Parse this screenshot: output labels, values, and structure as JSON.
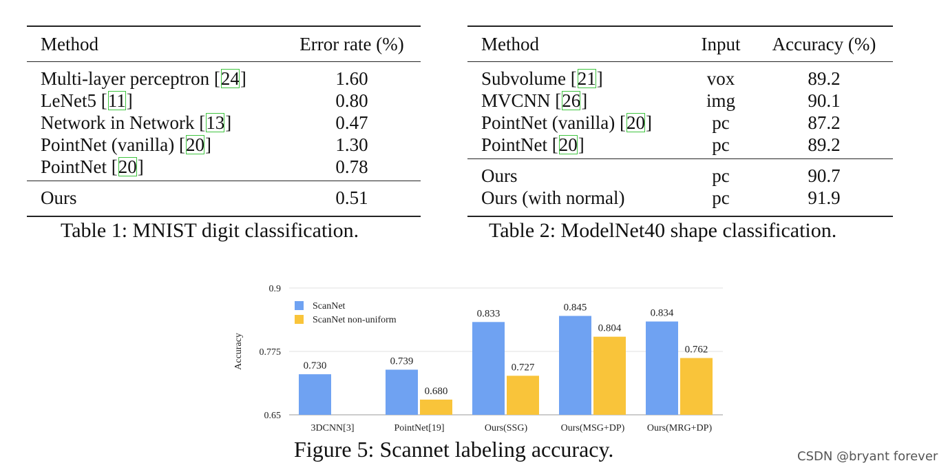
{
  "table1": {
    "headers": [
      "Method",
      "Error rate (%)"
    ],
    "rows": [
      {
        "method": "Multi-layer perceptron [",
        "cite": "24",
        "tail": "]",
        "value": "1.60"
      },
      {
        "method": "LeNet5 [",
        "cite": "11",
        "tail": "]",
        "value": "0.80"
      },
      {
        "method": "Network in Network [",
        "cite": "13",
        "tail": "]",
        "value": "0.47"
      },
      {
        "method": "PointNet (vanilla) [",
        "cite": "20",
        "tail": "]",
        "value": "1.30"
      },
      {
        "method": "PointNet [",
        "cite": "20",
        "tail": "]",
        "value": "0.78"
      }
    ],
    "ours": {
      "method": "Ours",
      "value": "0.51"
    },
    "caption": "Table 1: MNIST digit classification."
  },
  "table2": {
    "headers": [
      "Method",
      "Input",
      "Accuracy (%)"
    ],
    "rows": [
      {
        "method": "Subvolume [",
        "cite": "21",
        "tail": "]",
        "input": "vox",
        "value": "89.2"
      },
      {
        "method": "MVCNN [",
        "cite": "26",
        "tail": "]",
        "input": "img",
        "value": "90.1"
      },
      {
        "method": "PointNet (vanilla) [",
        "cite": "20",
        "tail": "]",
        "input": "pc",
        "value": "87.2"
      },
      {
        "method": "PointNet [",
        "cite": "20",
        "tail": "]",
        "input": "pc",
        "value": "89.2"
      }
    ],
    "ours": [
      {
        "method": "Ours",
        "input": "pc",
        "value": "90.7"
      },
      {
        "method": "Ours (with normal)",
        "input": "pc",
        "value": "91.9"
      }
    ],
    "caption": "Table 2: ModelNet40 shape classification."
  },
  "chart_data": {
    "type": "bar",
    "title": "",
    "xlabel": "",
    "ylabel": "Accuracy",
    "ylim": [
      0.65,
      0.9
    ],
    "yticks": [
      "0.9",
      "0.775",
      "0.65"
    ],
    "categories": [
      "3DCNN[3]",
      "PointNet[19]",
      "Ours(SSG)",
      "Ours(MSG+DP)",
      "Ours(MRG+DP)"
    ],
    "series": [
      {
        "name": "ScanNet",
        "color": "#6fa2f2",
        "values": [
          0.73,
          0.739,
          0.833,
          0.845,
          0.834
        ],
        "labels": [
          "0.730",
          "0.739",
          "0.833",
          "0.845",
          "0.834"
        ]
      },
      {
        "name": "ScanNet non-uniform",
        "color": "#f9c43a",
        "values": [
          null,
          0.68,
          0.727,
          0.804,
          0.762
        ],
        "labels": [
          "",
          "0.680",
          "0.727",
          "0.804",
          "0.762"
        ]
      }
    ],
    "legend": "top-left",
    "grid": true
  },
  "figure_caption": "Figure 5: Scannet labeling accuracy.",
  "watermark": "CSDN @bryant forever"
}
